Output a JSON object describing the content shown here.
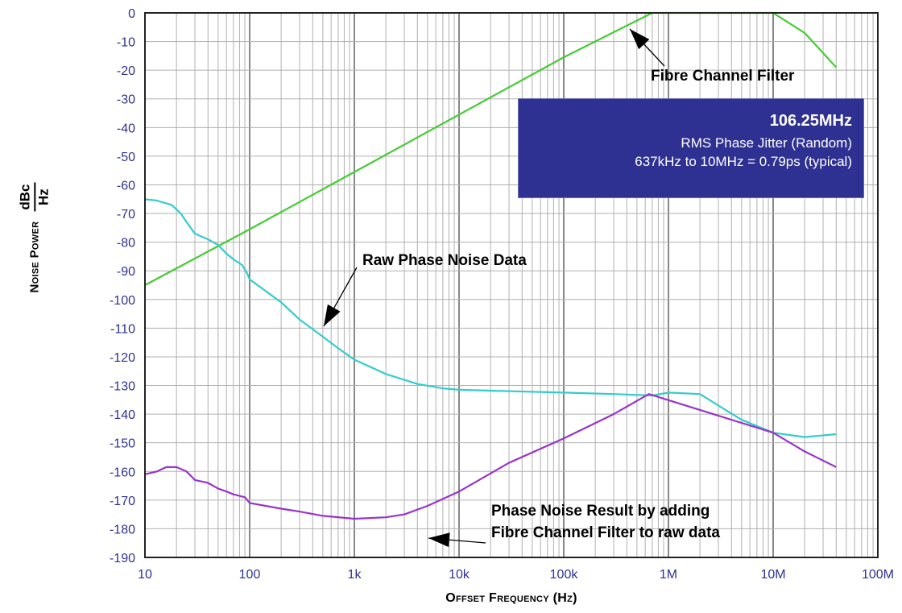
{
  "chart_data": {
    "type": "line",
    "xscale": "log",
    "xlim": [
      10,
      100000000
    ],
    "ylim": [
      -190,
      0
    ],
    "grid": true,
    "xticks": [
      "10",
      "100",
      "1k",
      "10k",
      "100k",
      "1M",
      "10M",
      "100M"
    ],
    "yticks": [
      "0",
      "-10",
      "-20",
      "-30",
      "-40",
      "-50",
      "-60",
      "-70",
      "-80",
      "-90",
      "-100",
      "-110",
      "-120",
      "-130",
      "-140",
      "-150",
      "-160",
      "-170",
      "-180",
      "-190"
    ],
    "xlabel": "Offset Frequency (Hz)",
    "ylabel_text": "Noise Power",
    "ylabel_num": "dBc",
    "ylabel_den": "Hz",
    "colors": {
      "filter": "#44cc33",
      "raw": "#33cccc",
      "result": "#9933cc",
      "axis": "#2e3192",
      "box": "#2e3192"
    },
    "series": [
      {
        "key": "filter",
        "points": [
          [
            10,
            -95
          ],
          [
            100,
            -75.5
          ],
          [
            1000,
            -55.5
          ],
          [
            10000,
            -35.5
          ],
          [
            100000,
            -15.5
          ],
          [
            700000,
            0
          ],
          [
            10000000,
            0
          ],
          [
            20000000,
            -7
          ],
          [
            40000000,
            -19
          ]
        ]
      },
      {
        "key": "raw",
        "points": [
          [
            10,
            -65
          ],
          [
            13,
            -65.5
          ],
          [
            18,
            -67
          ],
          [
            22,
            -70
          ],
          [
            25,
            -73
          ],
          [
            30,
            -77
          ],
          [
            40,
            -79
          ],
          [
            50,
            -81
          ],
          [
            60,
            -84
          ],
          [
            70,
            -86
          ],
          [
            85,
            -88
          ],
          [
            95,
            -91
          ],
          [
            100,
            -93
          ],
          [
            130,
            -96
          ],
          [
            200,
            -101
          ],
          [
            300,
            -107
          ],
          [
            500,
            -113
          ],
          [
            700,
            -117
          ],
          [
            1000,
            -121
          ],
          [
            2000,
            -126
          ],
          [
            4000,
            -129.5
          ],
          [
            7000,
            -131
          ],
          [
            10000,
            -131.5
          ],
          [
            30000,
            -132
          ],
          [
            100000,
            -132.5
          ],
          [
            300000,
            -133
          ],
          [
            700000,
            -133.5
          ],
          [
            1000000,
            -132.5
          ],
          [
            2000000,
            -133
          ],
          [
            3000000,
            -137
          ],
          [
            5000000,
            -142
          ],
          [
            10000000,
            -146.5
          ],
          [
            20000000,
            -148
          ],
          [
            40000000,
            -147
          ]
        ]
      },
      {
        "key": "result",
        "points": [
          [
            10,
            -161
          ],
          [
            13,
            -160
          ],
          [
            16,
            -158.5
          ],
          [
            20,
            -158.5
          ],
          [
            25,
            -160
          ],
          [
            30,
            -163
          ],
          [
            40,
            -164
          ],
          [
            50,
            -166
          ],
          [
            60,
            -167
          ],
          [
            70,
            -168
          ],
          [
            90,
            -169
          ],
          [
            100,
            -171
          ],
          [
            200,
            -173
          ],
          [
            300,
            -174
          ],
          [
            500,
            -175.5
          ],
          [
            1000,
            -176.5
          ],
          [
            2000,
            -176
          ],
          [
            3000,
            -175
          ],
          [
            5000,
            -172
          ],
          [
            10000,
            -167
          ],
          [
            30000,
            -157
          ],
          [
            100000,
            -148.5
          ],
          [
            300000,
            -140
          ],
          [
            650000,
            -133
          ],
          [
            10000000,
            -146.5
          ],
          [
            20000000,
            -153
          ],
          [
            40000000,
            -158.5
          ]
        ]
      }
    ]
  },
  "infobox": {
    "title": "106.25MHz",
    "line1": "RMS Phase Jitter (Random)",
    "line2": "637kHz to 10MHz = 0.79ps (typical)"
  },
  "annotations": {
    "filter": "Fibre Channel Filter",
    "raw": "Raw Phase Noise Data",
    "result_line1": "Phase Noise Result by adding",
    "result_line2": "Fibre Channel Filter to raw data"
  }
}
